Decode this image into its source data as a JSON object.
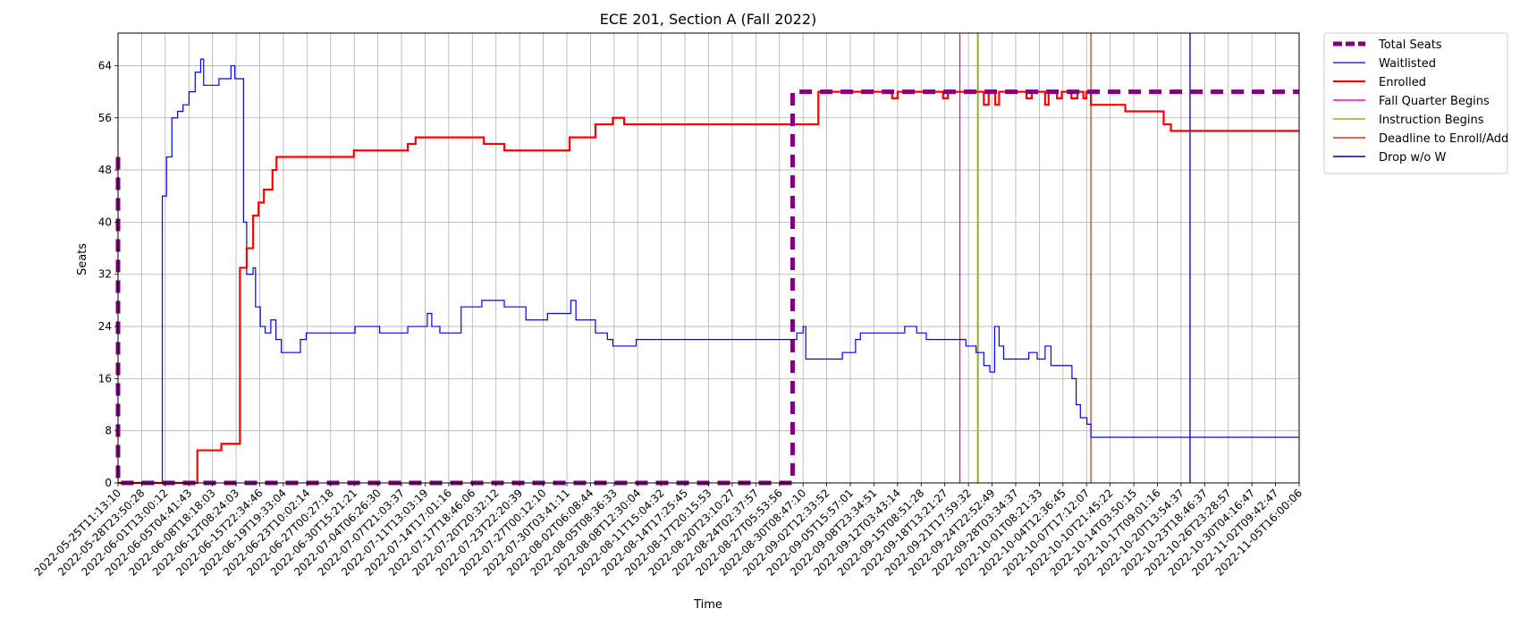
{
  "chart_data": {
    "type": "line",
    "title": "ECE 201, Section A (Fall 2022)",
    "xlabel": "Time",
    "ylabel": "Seats",
    "ylim": [
      0,
      69
    ],
    "y_ticks": [
      0,
      8,
      16,
      24,
      32,
      40,
      48,
      56,
      64
    ],
    "x_range": [
      "2022-05-25T11:13:10",
      "2022-11-05T16:00:06"
    ],
    "x_tick_labels": [
      "2022-05-25T11:13:10",
      "2022-05-28T23:50:28",
      "2022-06-01T13:00:12",
      "2022-06-05T04:41:43",
      "2022-06-08T18:18:03",
      "2022-06-12T08:24:03",
      "2022-06-15T22:34:46",
      "2022-06-19T19:33:04",
      "2022-06-23T10:02:14",
      "2022-06-27T00:27:18",
      "2022-06-30T15:21:21",
      "2022-07-04T06:26:30",
      "2022-07-07T21:03:37",
      "2022-07-11T13:03:19",
      "2022-07-14T17:01:16",
      "2022-07-17T18:46:06",
      "2022-07-20T20:32:12",
      "2022-07-23T22:20:39",
      "2022-07-27T00:12:10",
      "2022-07-30T03:41:11",
      "2022-08-02T06:08:44",
      "2022-08-05T08:36:33",
      "2022-08-08T12:30:04",
      "2022-08-11T15:04:32",
      "2022-08-14T17:25:45",
      "2022-08-17T20:15:53",
      "2022-08-20T23:10:27",
      "2022-08-24T02:37:57",
      "2022-08-27T05:53:56",
      "2022-08-30T08:47:10",
      "2022-09-02T12:33:52",
      "2022-09-05T15:57:01",
      "2022-09-08T23:34:51",
      "2022-09-12T03:43:14",
      "2022-09-15T08:51:28",
      "2022-09-18T13:21:27",
      "2022-09-21T17:59:32",
      "2022-09-24T22:52:49",
      "2022-09-28T03:34:37",
      "2022-10-01T08:21:33",
      "2022-10-04T12:36:45",
      "2022-10-07T17:12:07",
      "2022-10-10T21:45:22",
      "2022-10-14T03:50:15",
      "2022-10-17T09:01:16",
      "2022-10-20T13:54:37",
      "2022-10-23T18:46:37",
      "2022-10-26T23:28:57",
      "2022-10-30T04:16:47",
      "2022-11-02T09:42:47",
      "2022-11-05T16:00:06"
    ],
    "grid": true,
    "legend_position": "outside right, top",
    "series": [
      {
        "name": "Total Seats",
        "color": "#800080",
        "style": "dashed",
        "points": [
          [
            "2022-05-25T11:13:10",
            50
          ],
          [
            "2022-05-25T11:13:10",
            0
          ],
          [
            "2022-08-27T05:53:56",
            0
          ],
          [
            "2022-08-27T05:53:56",
            60
          ],
          [
            "2022-11-05T16:00:06",
            60
          ]
        ]
      },
      {
        "name": "Waitlisted",
        "color": "#0000ff",
        "style": "solid",
        "points": [
          [
            "2022-05-25T11:13:10",
            0
          ],
          [
            "2022-05-31T10:00:00",
            0
          ],
          [
            "2022-05-31T15:00:00",
            44
          ],
          [
            "2022-06-01T05:00:00",
            50
          ],
          [
            "2022-06-01T23:00:00",
            56
          ],
          [
            "2022-06-02T18:00:00",
            57
          ],
          [
            "2022-06-03T12:00:00",
            58
          ],
          [
            "2022-06-04T08:00:00",
            60
          ],
          [
            "2022-06-05T04:41:43",
            63
          ],
          [
            "2022-06-05T23:00:00",
            65
          ],
          [
            "2022-06-06T09:00:00",
            61
          ],
          [
            "2022-06-07T17:00:00",
            61
          ],
          [
            "2022-06-08T12:00:00",
            62
          ],
          [
            "2022-06-09T16:00:00",
            62
          ],
          [
            "2022-06-10T04:00:00",
            64
          ],
          [
            "2022-06-10T17:00:00",
            62
          ],
          [
            "2022-06-11T12:00:00",
            62
          ],
          [
            "2022-06-11T22:00:00",
            40
          ],
          [
            "2022-06-12T08:24:03",
            32
          ],
          [
            "2022-06-13T06:00:00",
            33
          ],
          [
            "2022-06-13T14:00:00",
            27
          ],
          [
            "2022-06-14T06:00:00",
            24
          ],
          [
            "2022-06-14T22:00:00",
            23
          ],
          [
            "2022-06-15T17:00:00",
            25
          ],
          [
            "2022-06-16T10:00:00",
            22
          ],
          [
            "2022-06-17T04:00:00",
            20
          ],
          [
            "2022-06-18T17:00:00",
            20
          ],
          [
            "2022-06-19T19:33:04",
            22
          ],
          [
            "2022-06-20T15:00:00",
            23
          ],
          [
            "2022-06-27T00:27:18",
            23
          ],
          [
            "2022-06-27T10:00:00",
            24
          ],
          [
            "2022-06-30T15:21:21",
            24
          ],
          [
            "2022-06-30T20:00:00",
            23
          ],
          [
            "2022-07-04T06:26:30",
            23
          ],
          [
            "2022-07-04T18:00:00",
            24
          ],
          [
            "2022-07-06T20:00:00",
            24
          ],
          [
            "2022-07-07T11:00:00",
            26
          ],
          [
            "2022-07-08T02:00:00",
            24
          ],
          [
            "2022-07-09T05:00:00",
            23
          ],
          [
            "2022-07-11T13:03:19",
            23
          ],
          [
            "2022-07-12T04:00:00",
            27
          ],
          [
            "2022-07-14T17:01:16",
            27
          ],
          [
            "2022-07-15T01:00:00",
            28
          ],
          [
            "2022-07-17T18:46:06",
            28
          ],
          [
            "2022-07-18T04:00:00",
            27
          ],
          [
            "2022-07-20T20:32:12",
            27
          ],
          [
            "2022-07-21T04:00:00",
            25
          ],
          [
            "2022-07-23T22:20:39",
            25
          ],
          [
            "2022-07-24T04:00:00",
            26
          ],
          [
            "2022-07-27T00:12:10",
            26
          ],
          [
            "2022-07-27T10:00:00",
            28
          ],
          [
            "2022-07-28T03:00:00",
            25
          ],
          [
            "2022-07-30T03:41:11",
            25
          ],
          [
            "2022-07-30T20:00:00",
            23
          ],
          [
            "2022-08-01T12:00:00",
            22
          ],
          [
            "2022-08-02T06:08:44",
            21
          ],
          [
            "2022-08-05T08:36:33",
            21
          ],
          [
            "2022-08-05T12:00:00",
            22
          ],
          [
            "2022-08-27T05:53:56",
            22
          ],
          [
            "2022-08-27T20:00:00",
            23
          ],
          [
            "2022-08-28T17:00:00",
            24
          ],
          [
            "2022-08-29T02:00:00",
            19
          ],
          [
            "2022-09-02T12:33:52",
            19
          ],
          [
            "2022-09-03T04:00:00",
            20
          ],
          [
            "2022-09-05T00:00:00",
            22
          ],
          [
            "2022-09-05T15:57:01",
            23
          ],
          [
            "2022-09-11T10:00:00",
            23
          ],
          [
            "2022-09-11T20:00:00",
            24
          ],
          [
            "2022-09-13T06:00:00",
            24
          ],
          [
            "2022-09-13T12:00:00",
            23
          ],
          [
            "2022-09-14T20:00:00",
            22
          ],
          [
            "2022-09-20T00:00:00",
            22
          ],
          [
            "2022-09-20T08:00:00",
            21
          ],
          [
            "2022-09-21T17:59:32",
            20
          ],
          [
            "2022-09-22T20:00:00",
            18
          ],
          [
            "2022-09-23T16:00:00",
            17
          ],
          [
            "2022-09-24T08:00:00",
            24
          ],
          [
            "2022-09-24T22:52:49",
            21
          ],
          [
            "2022-09-25T14:00:00",
            19
          ],
          [
            "2022-09-28T03:34:37",
            19
          ],
          [
            "2022-09-29T02:00:00",
            20
          ],
          [
            "2022-09-30T06:00:00",
            19
          ],
          [
            "2022-10-01T08:21:33",
            21
          ],
          [
            "2022-10-02T04:00:00",
            18
          ],
          [
            "2022-10-04T12:36:45",
            18
          ],
          [
            "2022-10-05T02:00:00",
            16
          ],
          [
            "2022-10-05T16:00:00",
            12
          ],
          [
            "2022-10-06T06:00:00",
            10
          ],
          [
            "2022-10-07T04:00:00",
            9
          ],
          [
            "2022-10-07T17:12:07",
            7
          ],
          [
            "2022-11-05T16:00:06",
            7
          ]
        ]
      },
      {
        "name": "Enrolled",
        "color": "#ff0000",
        "style": "solid",
        "points": [
          [
            "2022-05-25T11:13:10",
            0
          ],
          [
            "2022-06-05T00:00:00",
            0
          ],
          [
            "2022-06-05T12:00:00",
            5
          ],
          [
            "2022-06-08T12:00:00",
            5
          ],
          [
            "2022-06-08T20:00:00",
            6
          ],
          [
            "2022-06-10T02:00:00",
            6
          ],
          [
            "2022-06-11T10:00:00",
            33
          ],
          [
            "2022-06-12T08:24:03",
            36
          ],
          [
            "2022-06-13T06:00:00",
            41
          ],
          [
            "2022-06-14T00:00:00",
            43
          ],
          [
            "2022-06-14T18:00:00",
            45
          ],
          [
            "2022-06-15T22:34:46",
            48
          ],
          [
            "2022-06-16T12:00:00",
            50
          ],
          [
            "2022-06-27T00:27:18",
            50
          ],
          [
            "2022-06-27T06:00:00",
            51
          ],
          [
            "2022-07-04T06:26:30",
            51
          ],
          [
            "2022-07-04T18:00:00",
            52
          ],
          [
            "2022-07-05T20:00:00",
            53
          ],
          [
            "2022-07-14T17:01:16",
            53
          ],
          [
            "2022-07-15T08:00:00",
            52
          ],
          [
            "2022-07-17T18:46:06",
            52
          ],
          [
            "2022-07-18T04:00:00",
            51
          ],
          [
            "2022-07-27T00:12:10",
            51
          ],
          [
            "2022-07-27T06:00:00",
            53
          ],
          [
            "2022-07-30T03:41:11",
            53
          ],
          [
            "2022-07-30T20:00:00",
            55
          ],
          [
            "2022-08-02T06:08:44",
            56
          ],
          [
            "2022-08-03T20:00:00",
            55
          ],
          [
            "2022-08-27T05:53:56",
            55
          ],
          [
            "2022-08-30T08:47:10",
            55
          ],
          [
            "2022-08-30T20:00:00",
            60
          ],
          [
            "2022-09-09T20:00:00",
            60
          ],
          [
            "2022-09-10T02:00:00",
            59
          ],
          [
            "2022-09-10T20:00:00",
            60
          ],
          [
            "2022-09-16T23:00:00",
            60
          ],
          [
            "2022-09-17T04:00:00",
            59
          ],
          [
            "2022-09-17T20:00:00",
            60
          ],
          [
            "2022-09-22T12:00:00",
            60
          ],
          [
            "2022-09-22T20:00:00",
            58
          ],
          [
            "2022-09-23T12:00:00",
            60
          ],
          [
            "2022-09-24T10:00:00",
            58
          ],
          [
            "2022-09-24T22:52:49",
            60
          ],
          [
            "2022-09-28T18:00:00",
            59
          ],
          [
            "2022-09-29T12:00:00",
            60
          ],
          [
            "2022-10-01T08:21:33",
            58
          ],
          [
            "2022-10-01T20:00:00",
            60
          ],
          [
            "2022-10-03T00:00:00",
            59
          ],
          [
            "2022-10-03T16:00:00",
            60
          ],
          [
            "2022-10-05T00:00:00",
            59
          ],
          [
            "2022-10-05T20:00:00",
            60
          ],
          [
            "2022-10-06T16:00:00",
            59
          ],
          [
            "2022-10-07T02:00:00",
            60
          ],
          [
            "2022-10-07T17:12:07",
            58
          ],
          [
            "2022-10-12T10:00:00",
            58
          ],
          [
            "2022-10-12T12:00:00",
            57
          ],
          [
            "2022-10-17T09:01:16",
            57
          ],
          [
            "2022-10-17T20:00:00",
            55
          ],
          [
            "2022-10-18T20:00:00",
            54
          ],
          [
            "2022-11-05T16:00:06",
            54
          ]
        ]
      }
    ],
    "vertical_lines": [
      {
        "name": "Fall Quarter Begins",
        "x": "2022-09-19T12:00:00",
        "color": "#e60cba"
      },
      {
        "name": "Instruction Begins",
        "x": "2022-09-22T00:00:00",
        "color": "#8fb021"
      },
      {
        "name": "Deadline to Enroll/Add",
        "x": "2022-10-07T17:12:07",
        "color": "#d63a17"
      },
      {
        "name": "Drop w/o W",
        "x": "2022-10-21T12:00:00",
        "color": "#00008b"
      }
    ]
  }
}
